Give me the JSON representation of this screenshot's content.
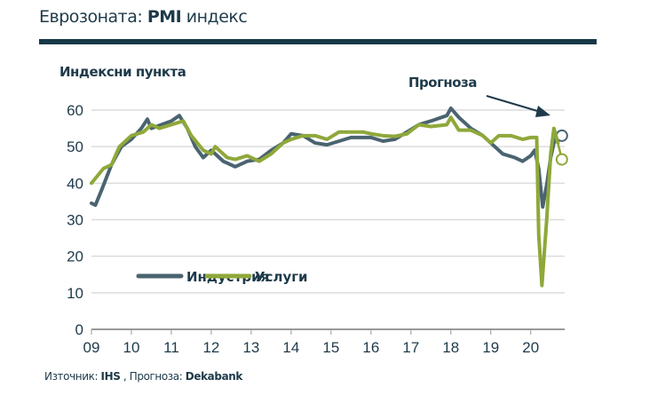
{
  "title_regular": "Еврозоната: ",
  "title_bold": "PMI",
  "title_rest": " индекс",
  "source": {
    "label": "Източник: ",
    "source_name": "IHS",
    "sep": " , Прогноза: ",
    "forecast_name": "Dekabank"
  },
  "colors": {
    "industry": "#4a6470",
    "services": "#8fa83a",
    "dark": "#1e3a4a"
  },
  "chart_data": {
    "type": "line",
    "ylabel": "Индексни пункта",
    "annotation": "Прогноза",
    "ylim": [
      0,
      60
    ],
    "xlim": [
      2009,
      2020.85
    ],
    "yticks": [
      0,
      10,
      20,
      30,
      40,
      50,
      60
    ],
    "xticks": [
      {
        "x": 2009,
        "label": "09"
      },
      {
        "x": 2010,
        "label": "10"
      },
      {
        "x": 2011,
        "label": "11"
      },
      {
        "x": 2012,
        "label": "12"
      },
      {
        "x": 2013,
        "label": "13"
      },
      {
        "x": 2014,
        "label": "14"
      },
      {
        "x": 2015,
        "label": "15"
      },
      {
        "x": 2016,
        "label": "16"
      },
      {
        "x": 2017,
        "label": "17"
      },
      {
        "x": 2018,
        "label": "18"
      },
      {
        "x": 2019,
        "label": "19"
      },
      {
        "x": 2020,
        "label": "20"
      }
    ],
    "grid": true,
    "legend": "inside-bottom-left",
    "series": [
      {
        "name": "Индустрия",
        "color": "#4a6470",
        "x": [
          2009.0,
          2009.1,
          2009.25,
          2009.5,
          2009.75,
          2010.0,
          2010.25,
          2010.4,
          2010.5,
          2010.75,
          2011.0,
          2011.2,
          2011.4,
          2011.6,
          2011.8,
          2012.0,
          2012.3,
          2012.5,
          2012.6,
          2012.9,
          2013.2,
          2013.5,
          2013.8,
          2014.0,
          2014.3,
          2014.6,
          2014.9,
          2015.2,
          2015.5,
          2015.8,
          2016.0,
          2016.3,
          2016.6,
          2016.9,
          2017.2,
          2017.5,
          2017.9,
          2018.0,
          2018.2,
          2018.5,
          2018.8,
          2019.0,
          2019.3,
          2019.6,
          2019.8,
          2020.0,
          2020.1,
          2020.2,
          2020.3,
          2020.4,
          2020.5,
          2020.6,
          2020.68
        ],
        "y": [
          34.5,
          34,
          38,
          45,
          50,
          52,
          55,
          57.5,
          55,
          56,
          57,
          58.5,
          55,
          50,
          47,
          49,
          46,
          45,
          44.5,
          46,
          46.5,
          49,
          51,
          53.5,
          53,
          51,
          50.5,
          51.5,
          52.5,
          52.5,
          52.5,
          51.5,
          52,
          54,
          56,
          57,
          58.5,
          60.5,
          58,
          55,
          53,
          51,
          48,
          47,
          46,
          47.5,
          49,
          44,
          33.5,
          39.5,
          47,
          52,
          51.5
        ],
        "forecast": {
          "x": 2020.78,
          "y": 53
        }
      },
      {
        "name": "Услуги",
        "color": "#8fa83a",
        "x": [
          2009.0,
          2009.15,
          2009.3,
          2009.5,
          2009.7,
          2010.0,
          2010.3,
          2010.5,
          2010.7,
          2011.0,
          2011.3,
          2011.5,
          2011.8,
          2012.0,
          2012.1,
          2012.4,
          2012.6,
          2012.9,
          2013.2,
          2013.5,
          2013.8,
          2014.0,
          2014.3,
          2014.6,
          2014.9,
          2015.2,
          2015.5,
          2015.8,
          2016.0,
          2016.3,
          2016.6,
          2016.9,
          2017.2,
          2017.5,
          2017.9,
          2018.0,
          2018.2,
          2018.5,
          2018.8,
          2019.0,
          2019.2,
          2019.5,
          2019.8,
          2020.0,
          2020.15,
          2020.2,
          2020.28,
          2020.4,
          2020.5,
          2020.58,
          2020.68
        ],
        "y": [
          40,
          42,
          44,
          45,
          50,
          53,
          54,
          56,
          55,
          56,
          57,
          53,
          49,
          48,
          50,
          47,
          46.5,
          47.5,
          46,
          48,
          51,
          52,
          53,
          53,
          52,
          54,
          54,
          54,
          53.5,
          53,
          52.8,
          53.5,
          56,
          55.5,
          56,
          58,
          54.5,
          54.5,
          53,
          51,
          53,
          53,
          52,
          52.5,
          52.5,
          26,
          12,
          30,
          48,
          55,
          51
        ],
        "forecast": {
          "x": 2020.78,
          "y": 46.5
        }
      }
    ]
  }
}
